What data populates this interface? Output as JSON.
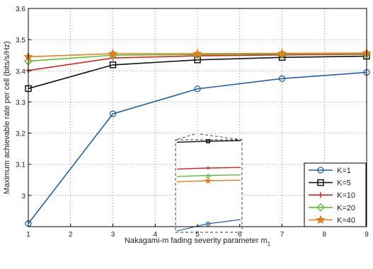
{
  "chart_data": {
    "type": "line",
    "title": "",
    "xlabel": "Nakagami-m fading severity parameter m",
    "xlabel_subscript": "1",
    "ylabel": "Maximum achievable rate per cell (bits/s/Hz)",
    "xlim": [
      1,
      9
    ],
    "ylim": [
      2.9,
      3.6
    ],
    "x_ticks": [
      1,
      2,
      3,
      4,
      5,
      6,
      7,
      8,
      9
    ],
    "y_ticks": [
      "3.6",
      "3.5",
      "3.4",
      "3.3",
      "3.2",
      "3.1",
      "3"
    ],
    "y_tick_values": [
      3.6,
      3.5,
      3.4,
      3.3,
      3.2,
      3.1,
      3.0
    ],
    "grid": "dotted",
    "legend_position": "bottom-right",
    "x": [
      1,
      3,
      5,
      7,
      9
    ],
    "series": [
      {
        "name": "K=1",
        "color": "#2060b0",
        "marker": "circle",
        "values": [
          2.91,
          3.262,
          3.342,
          3.375,
          3.395
        ]
      },
      {
        "name": "K=5",
        "color": "#111111",
        "marker": "square",
        "values": [
          3.343,
          3.419,
          3.435,
          3.443,
          3.447
        ]
      },
      {
        "name": "K=10",
        "color": "#e02020",
        "marker": "plus",
        "values": [
          3.401,
          3.441,
          3.448,
          3.451,
          3.453
        ]
      },
      {
        "name": "K=20",
        "color": "#60c030",
        "marker": "diamond",
        "values": [
          3.431,
          3.45,
          3.452,
          3.454,
          3.455
        ]
      },
      {
        "name": "K=40",
        "color": "#e08020",
        "marker": "star",
        "values": [
          3.445,
          3.455,
          3.455,
          3.456,
          3.457
        ]
      }
    ],
    "inset": {
      "description_zoom_x": 5,
      "series_markers_at_x": [
        5,
        5,
        5,
        5,
        5
      ]
    }
  }
}
